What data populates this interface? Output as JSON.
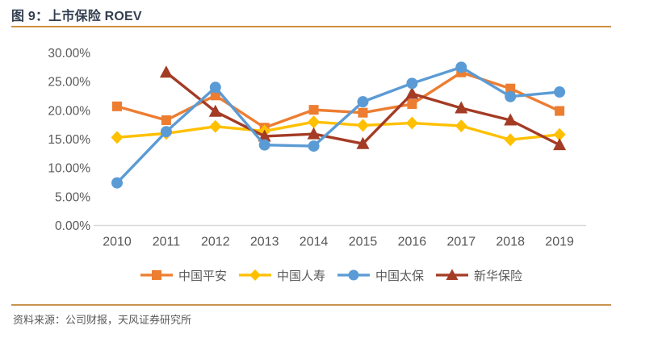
{
  "header": {
    "title": "图 9：上市保险 ROEV"
  },
  "footer": {
    "source": "资料来源：公司财报，天风证券研究所"
  },
  "colors": {
    "title_text": "#333F50",
    "rule_orange": "#D0903F",
    "axis_label": "#595959",
    "axis_line": "#D9D9D9"
  },
  "chart_data": {
    "type": "line",
    "title": "上市保险 ROEV",
    "categories": [
      "2010",
      "2011",
      "2012",
      "2013",
      "2014",
      "2015",
      "2016",
      "2017",
      "2018",
      "2019"
    ],
    "series": [
      {
        "name": "中国平安",
        "marker": "square",
        "color": "#ED7D31",
        "values": [
          20.7,
          18.3,
          22.6,
          17.0,
          20.1,
          19.6,
          21.1,
          26.6,
          23.8,
          19.9
        ]
      },
      {
        "name": "中国人寿",
        "marker": "diamond",
        "color": "#FFC000",
        "values": [
          15.3,
          16.0,
          17.2,
          16.4,
          18.0,
          17.4,
          17.8,
          17.3,
          14.9,
          15.8
        ]
      },
      {
        "name": "新华保险",
        "marker": "triangle",
        "color": "#A43B25",
        "values": [
          null,
          26.6,
          19.8,
          15.5,
          15.9,
          14.2,
          22.9,
          20.4,
          18.3,
          14.0
        ]
      },
      {
        "name": "中国太保",
        "marker": "circle",
        "color": "#5B9BD5",
        "values": [
          7.4,
          16.3,
          24.0,
          14.0,
          13.8,
          21.5,
          24.7,
          27.5,
          22.4,
          23.2
        ]
      }
    ],
    "legend_order": [
      "中国平安",
      "中国人寿",
      "中国太保",
      "新华保险"
    ],
    "ylim": [
      0,
      30
    ],
    "ytick_step": 5,
    "ytick_labels": [
      "0.00%",
      "5.00%",
      "10.00%",
      "15.00%",
      "20.00%",
      "25.00%",
      "30.00%"
    ],
    "grid": false,
    "legend_position": "bottom"
  }
}
